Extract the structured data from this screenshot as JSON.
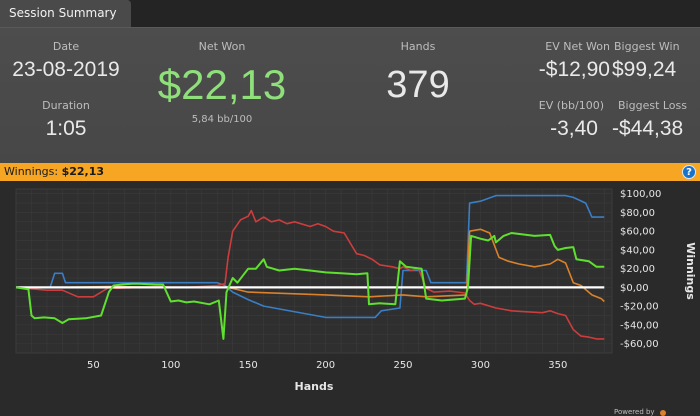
{
  "tabs": [
    {
      "label": "Session Summary"
    }
  ],
  "summary": {
    "date_label": "Date",
    "date_value": "23-08-2019",
    "duration_label": "Duration",
    "duration_value": "1:05",
    "net_won_label": "Net Won",
    "net_won_value": "$22,13",
    "bb_per_100": "5,84 bb/100",
    "hands_label": "Hands",
    "hands_value": "379",
    "ev_net_won_label": "EV Net Won",
    "ev_net_won_value": "-$12,90",
    "biggest_win_label": "Biggest Win",
    "biggest_win_value": "$99,24",
    "ev_bb_label": "EV (bb/100)",
    "ev_bb_value": "-3,40",
    "biggest_loss_label": "Biggest Loss",
    "biggest_loss_value": "-$44,38"
  },
  "winnings_bar": {
    "label": "Winnings:",
    "value": "$22,13",
    "help_icon": "?"
  },
  "footer": {
    "powered_by": "Powered by"
  },
  "colors": {
    "net_won": "#8fe07a",
    "winnings_bar": "#f6a623",
    "green": "#5fe02f",
    "red": "#cc3d3d",
    "blue": "#3a7ec4",
    "orange": "#d9822b"
  },
  "chart_data": {
    "type": "line",
    "xlabel": "Hands",
    "ylabel": "Winnings",
    "xlim": [
      0,
      385
    ],
    "ylim": [
      -70,
      105
    ],
    "x_ticks": [
      50,
      100,
      150,
      200,
      250,
      300,
      350
    ],
    "y_ticks": [
      100,
      80,
      60,
      40,
      20,
      0,
      -20,
      -40,
      -60
    ],
    "y_tick_labels": [
      "$100,00",
      "$80,00",
      "$60,00",
      "$40,00",
      "$20,00",
      "$0,00",
      "-$20,00",
      "-$40,00",
      "-$60,00"
    ],
    "series": [
      {
        "color": "green",
        "points": [
          [
            0,
            0
          ],
          [
            8,
            -2
          ],
          [
            10,
            -30
          ],
          [
            12,
            -33
          ],
          [
            18,
            -32
          ],
          [
            25,
            -33
          ],
          [
            30,
            -38
          ],
          [
            34,
            -34
          ],
          [
            45,
            -33
          ],
          [
            55,
            -30
          ],
          [
            60,
            -5
          ],
          [
            63,
            2
          ],
          [
            68,
            3
          ],
          [
            75,
            4
          ],
          [
            80,
            4
          ],
          [
            90,
            3
          ],
          [
            95,
            3
          ],
          [
            100,
            -15
          ],
          [
            105,
            -14
          ],
          [
            110,
            -16
          ],
          [
            115,
            -15
          ],
          [
            125,
            -18
          ],
          [
            131,
            -14
          ],
          [
            134,
            -55
          ],
          [
            136,
            -5
          ],
          [
            140,
            10
          ],
          [
            143,
            5
          ],
          [
            150,
            20
          ],
          [
            155,
            20
          ],
          [
            160,
            30
          ],
          [
            162,
            22
          ],
          [
            170,
            18
          ],
          [
            180,
            20
          ],
          [
            190,
            18
          ],
          [
            200,
            16
          ],
          [
            210,
            15
          ],
          [
            220,
            14
          ],
          [
            227,
            15
          ],
          [
            228,
            -18
          ],
          [
            235,
            -17
          ],
          [
            245,
            -18
          ],
          [
            248,
            28
          ],
          [
            252,
            22
          ],
          [
            262,
            20
          ],
          [
            265,
            -12
          ],
          [
            275,
            -14
          ],
          [
            290,
            -12
          ],
          [
            292,
            0
          ],
          [
            294,
            55
          ],
          [
            296,
            54
          ],
          [
            300,
            52
          ],
          [
            305,
            50
          ],
          [
            309,
            55
          ],
          [
            310,
            48
          ],
          [
            315,
            55
          ],
          [
            320,
            58
          ],
          [
            335,
            55
          ],
          [
            345,
            56
          ],
          [
            348,
            44
          ],
          [
            350,
            40
          ],
          [
            355,
            42
          ],
          [
            360,
            43
          ],
          [
            362,
            30
          ],
          [
            370,
            28
          ],
          [
            375,
            22
          ],
          [
            380,
            22
          ]
        ]
      },
      {
        "color": "red",
        "points": [
          [
            0,
            0
          ],
          [
            20,
            -3
          ],
          [
            30,
            -3
          ],
          [
            40,
            -10
          ],
          [
            50,
            -10
          ],
          [
            60,
            0
          ],
          [
            65,
            -1
          ],
          [
            80,
            0
          ],
          [
            95,
            1
          ],
          [
            100,
            0
          ],
          [
            110,
            0
          ],
          [
            130,
            2
          ],
          [
            135,
            4
          ],
          [
            137,
            32
          ],
          [
            140,
            60
          ],
          [
            145,
            72
          ],
          [
            150,
            76
          ],
          [
            152,
            82
          ],
          [
            155,
            70
          ],
          [
            160,
            75
          ],
          [
            165,
            70
          ],
          [
            170,
            72
          ],
          [
            175,
            68
          ],
          [
            180,
            70
          ],
          [
            190,
            65
          ],
          [
            195,
            68
          ],
          [
            200,
            65
          ],
          [
            205,
            60
          ],
          [
            212,
            58
          ],
          [
            220,
            36
          ],
          [
            225,
            34
          ],
          [
            230,
            30
          ],
          [
            235,
            24
          ],
          [
            243,
            22
          ],
          [
            248,
            20
          ],
          [
            250,
            22
          ],
          [
            255,
            18
          ],
          [
            260,
            20
          ],
          [
            265,
            -1
          ],
          [
            270,
            -5
          ],
          [
            280,
            -4
          ],
          [
            290,
            -6
          ],
          [
            293,
            -14
          ],
          [
            296,
            -18
          ],
          [
            300,
            -17
          ],
          [
            310,
            -22
          ],
          [
            320,
            -25
          ],
          [
            330,
            -26
          ],
          [
            340,
            -27
          ],
          [
            345,
            -25
          ],
          [
            350,
            -28
          ],
          [
            355,
            -30
          ],
          [
            360,
            -45
          ],
          [
            365,
            -52
          ],
          [
            370,
            -53
          ],
          [
            375,
            -55
          ],
          [
            380,
            -55
          ]
        ]
      },
      {
        "color": "blue",
        "points": [
          [
            0,
            0
          ],
          [
            22,
            0
          ],
          [
            25,
            15
          ],
          [
            30,
            15
          ],
          [
            32,
            5
          ],
          [
            50,
            5
          ],
          [
            80,
            5
          ],
          [
            100,
            5
          ],
          [
            130,
            5
          ],
          [
            135,
            2
          ],
          [
            140,
            -5
          ],
          [
            150,
            -13
          ],
          [
            160,
            -20
          ],
          [
            200,
            -32
          ],
          [
            225,
            -32
          ],
          [
            232,
            -32
          ],
          [
            236,
            -25
          ],
          [
            248,
            -22
          ],
          [
            250,
            18
          ],
          [
            255,
            18
          ],
          [
            265,
            18
          ],
          [
            268,
            5
          ],
          [
            280,
            5
          ],
          [
            291,
            5
          ],
          [
            293,
            90
          ],
          [
            300,
            92
          ],
          [
            310,
            98
          ],
          [
            335,
            98
          ],
          [
            355,
            98
          ],
          [
            360,
            96
          ],
          [
            368,
            90
          ],
          [
            372,
            75
          ],
          [
            380,
            75
          ]
        ]
      },
      {
        "color": "orange",
        "points": [
          [
            0,
            0
          ],
          [
            30,
            0
          ],
          [
            60,
            1
          ],
          [
            100,
            0
          ],
          [
            130,
            0
          ],
          [
            137,
            0
          ],
          [
            150,
            -5
          ],
          [
            200,
            -8
          ],
          [
            228,
            -10
          ],
          [
            250,
            -8
          ],
          [
            265,
            -10
          ],
          [
            291,
            -8
          ],
          [
            293,
            60
          ],
          [
            300,
            62
          ],
          [
            306,
            58
          ],
          [
            312,
            32
          ],
          [
            318,
            28
          ],
          [
            325,
            25
          ],
          [
            335,
            22
          ],
          [
            345,
            25
          ],
          [
            350,
            30
          ],
          [
            355,
            26
          ],
          [
            360,
            5
          ],
          [
            365,
            2
          ],
          [
            372,
            -8
          ],
          [
            378,
            -12
          ],
          [
            380,
            -15
          ]
        ]
      },
      {
        "color": "white",
        "points": [
          [
            0,
            0
          ],
          [
            380,
            0
          ]
        ]
      }
    ]
  }
}
